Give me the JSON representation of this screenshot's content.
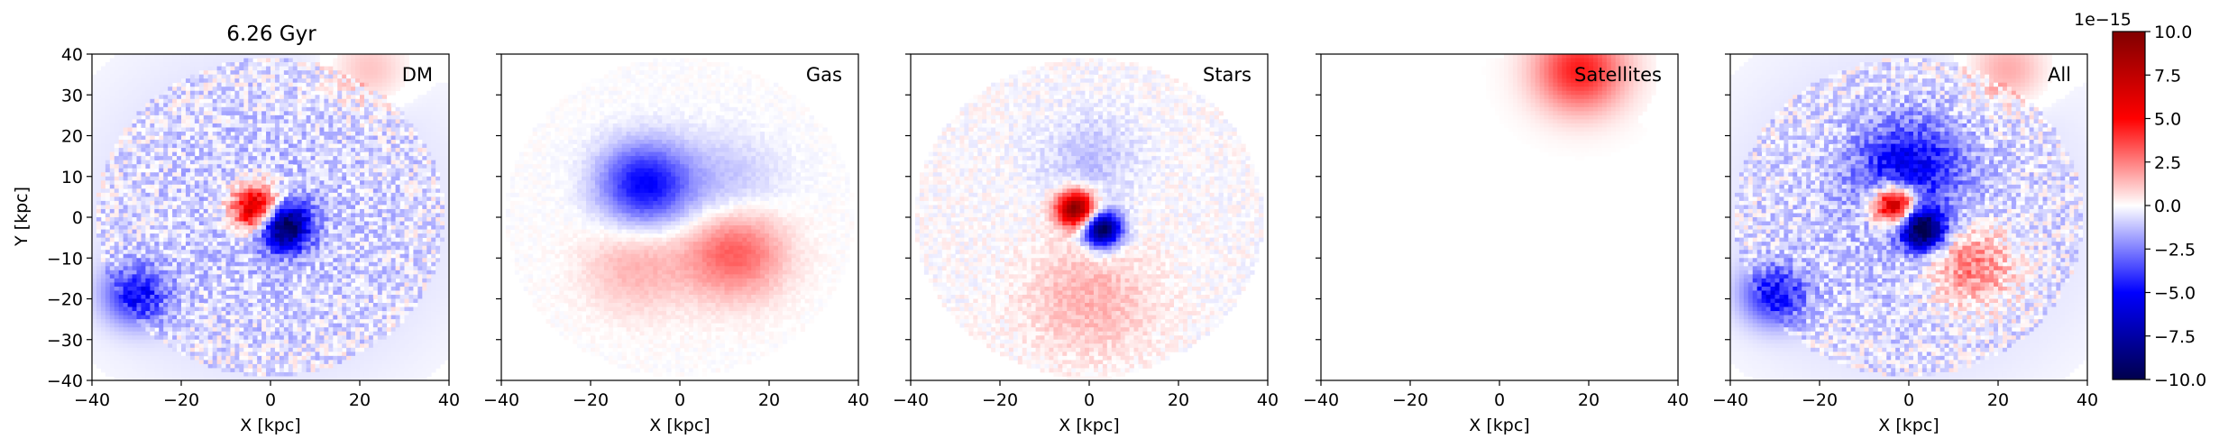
{
  "chart_data": {
    "type": "heatmap",
    "title": "6.26 Gyr",
    "xlabel": "X [kpc]",
    "ylabel": "Y [kpc]",
    "xlim": [
      -40,
      40
    ],
    "ylim": [
      -40,
      40
    ],
    "xticks": [
      "−40",
      "−20",
      "0",
      "20",
      "40"
    ],
    "yticks": [
      "40",
      "30",
      "20",
      "10",
      "0",
      "−10",
      "−20",
      "−30",
      "−40"
    ],
    "grid": false,
    "colormap": "seismic",
    "colorbar": {
      "offset_label": "1e−15",
      "ticks": [
        "10.0",
        "7.5",
        "5.0",
        "2.5",
        "0.0",
        "−2.5",
        "−5.0",
        "−7.5",
        "−10.0"
      ],
      "vmin": -10.0,
      "vmax": 10.0
    },
    "colors": {
      "positive": "#8b0000",
      "negative": "#00004c",
      "zero": "#ffffff"
    },
    "panels": [
      {
        "name": "DM",
        "components": [
          {
            "x": -3,
            "y": 2,
            "sigma": 4,
            "amp": 0.9
          },
          {
            "x": 3,
            "y": -2,
            "sigma": 4,
            "amp": -1.0
          },
          {
            "x": -30,
            "y": -19,
            "sigma": 5,
            "amp": -0.45
          },
          {
            "x": 0,
            "y": 0,
            "sigma": 28,
            "amp": -0.12
          },
          {
            "x": 22,
            "y": 36,
            "sigma": 6,
            "amp": 0.15
          }
        ],
        "noise": 0.12,
        "disk_radius": 39
      },
      {
        "name": "Gas",
        "components": [
          {
            "x": -8,
            "y": 8,
            "sigma": 7,
            "amp": -0.5
          },
          {
            "x": 12,
            "y": -8,
            "sigma": 8,
            "amp": 0.35
          },
          {
            "x": -10,
            "y": -12,
            "sigma": 8,
            "amp": 0.15
          },
          {
            "x": 10,
            "y": 6,
            "sigma": 9,
            "amp": -0.15
          }
        ],
        "noise": 0.02,
        "disk_radius": 39
      },
      {
        "name": "Stars",
        "components": [
          {
            "x": -3,
            "y": 2,
            "sigma": 3,
            "amp": 1.0
          },
          {
            "x": 3,
            "y": -3,
            "sigma": 3,
            "amp": -1.0
          },
          {
            "x": 0,
            "y": -20,
            "sigma": 10,
            "amp": 0.15
          },
          {
            "x": 0,
            "y": 14,
            "sigma": 8,
            "amp": -0.12
          }
        ],
        "noise": 0.05,
        "disk_radius": 39
      },
      {
        "name": "Satellites",
        "components": [
          {
            "x": 18,
            "y": 36,
            "sigma": 7,
            "amp": 0.45
          }
        ],
        "noise": 0.0,
        "disk_radius": 39
      },
      {
        "name": "All",
        "components": [
          {
            "x": -3,
            "y": 3,
            "sigma": 3.5,
            "amp": 1.0
          },
          {
            "x": 3,
            "y": -3,
            "sigma": 3.5,
            "amp": -1.0
          },
          {
            "x": 0,
            "y": 12,
            "sigma": 8,
            "amp": -0.45
          },
          {
            "x": 14,
            "y": -12,
            "sigma": 7,
            "amp": 0.35
          },
          {
            "x": -30,
            "y": -19,
            "sigma": 5,
            "amp": -0.45
          },
          {
            "x": 0,
            "y": 0,
            "sigma": 28,
            "amp": -0.12
          },
          {
            "x": 22,
            "y": 36,
            "sigma": 6,
            "amp": 0.2
          }
        ],
        "noise": 0.12,
        "disk_radius": 39
      }
    ]
  }
}
